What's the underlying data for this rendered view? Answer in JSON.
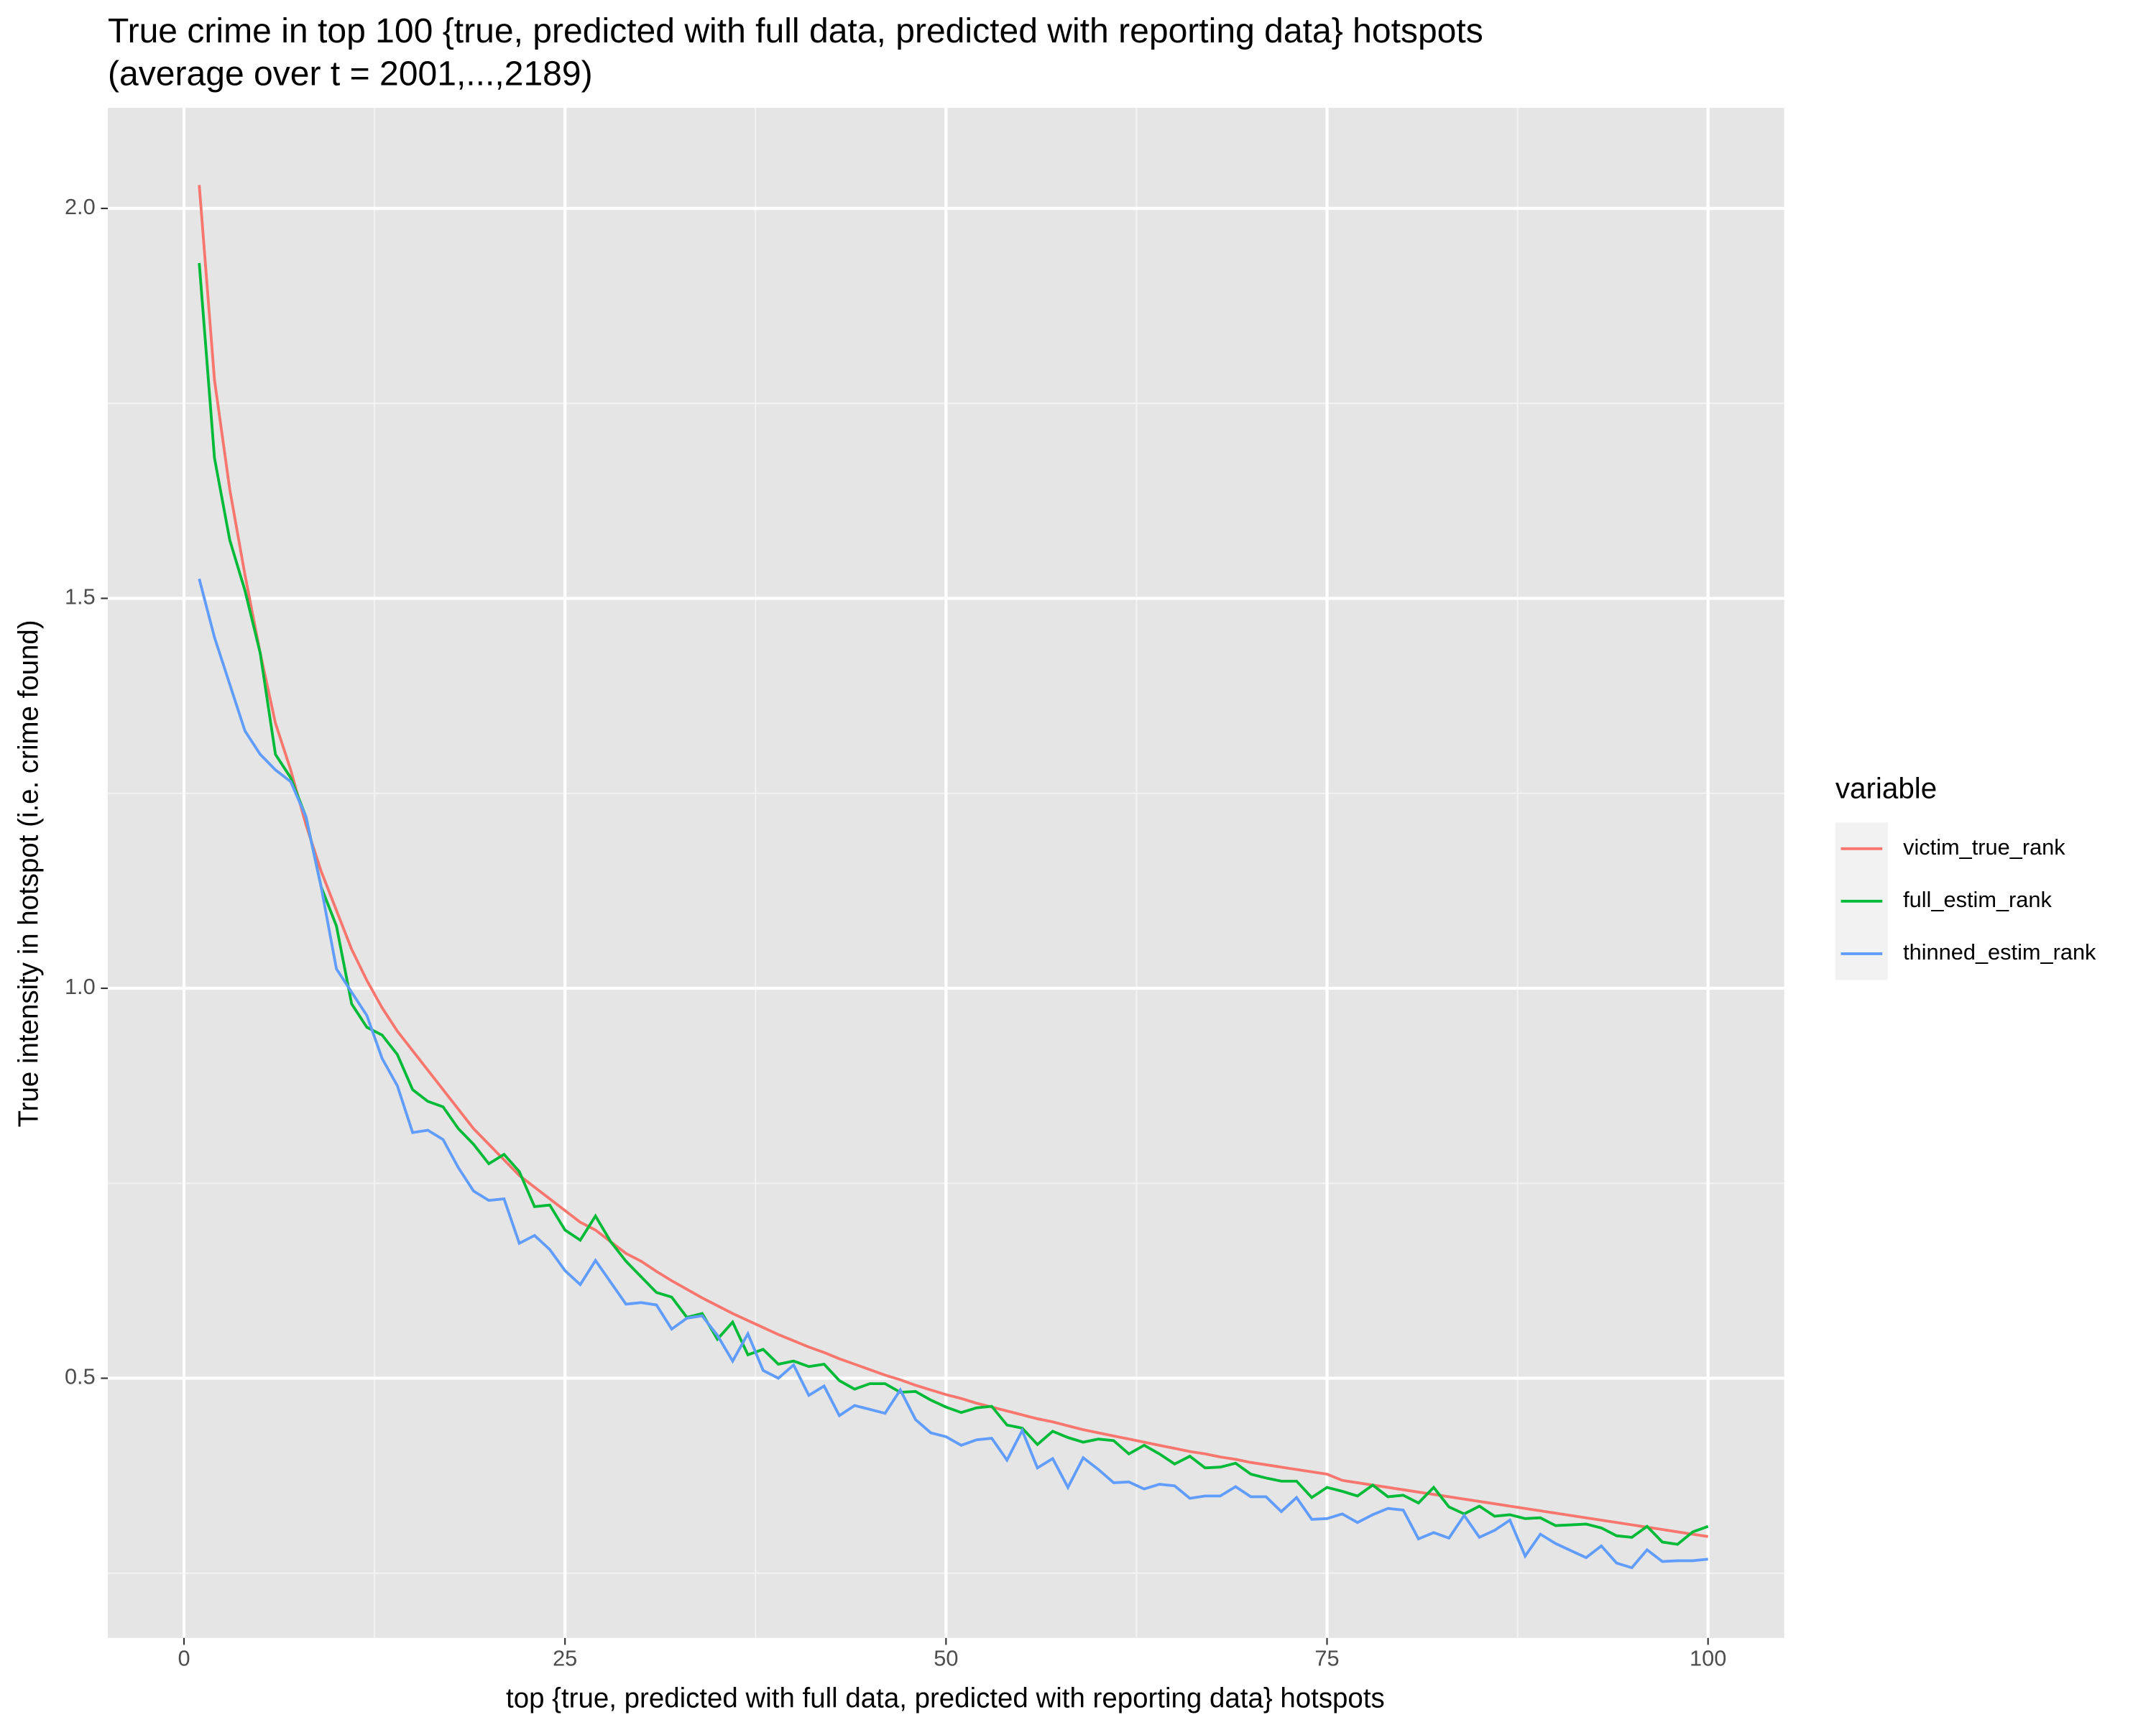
{
  "chart_data": {
    "type": "line",
    "title": "True crime in top 100 {true, predicted with full data, predicted with reporting data} hotspots",
    "subtitle": "(average over t = 2001,...,2189)",
    "x_label": "top {true, predicted with full data, predicted with reporting data} hotspots",
    "y_label": "True intensity in hotspot (i.e. crime found)",
    "legend_title": "variable",
    "legend_position": "right",
    "grid": true,
    "xlim": [
      -5,
      105
    ],
    "xticks": [
      0,
      25,
      50,
      75,
      100
    ],
    "xminor": [
      12.5,
      37.5,
      62.5,
      87.5
    ],
    "ylim": [
      0.167,
      2.129
    ],
    "yticks": [
      {
        "value": 0.5,
        "label": "0.5"
      },
      {
        "value": 1,
        "label": "1.0"
      },
      {
        "value": 1.5,
        "label": "1.5"
      },
      {
        "value": 2,
        "label": "2.0"
      }
    ],
    "yminor": [
      0.25,
      0.75,
      1.25,
      1.75
    ],
    "x": [
      1,
      2,
      3,
      4,
      5,
      6,
      7,
      8,
      9,
      10,
      11,
      12,
      13,
      14,
      15,
      16,
      17,
      18,
      19,
      20,
      21,
      22,
      23,
      24,
      25,
      26,
      27,
      28,
      29,
      30,
      31,
      32,
      33,
      34,
      35,
      36,
      37,
      38,
      39,
      40,
      41,
      42,
      43,
      44,
      45,
      46,
      47,
      48,
      49,
      50,
      51,
      52,
      53,
      54,
      55,
      56,
      57,
      58,
      59,
      60,
      61,
      62,
      63,
      64,
      65,
      66,
      67,
      68,
      69,
      70,
      71,
      72,
      73,
      74,
      75,
      76,
      77,
      78,
      79,
      80,
      81,
      82,
      83,
      84,
      85,
      86,
      87,
      88,
      89,
      90,
      91,
      92,
      93,
      94,
      95,
      96,
      97,
      98,
      99,
      100
    ],
    "series": [
      {
        "name": "victim_true_rank",
        "color": "#f8766d",
        "values": [
          2.03,
          1.78,
          1.64,
          1.53,
          1.43,
          1.34,
          1.28,
          1.21,
          1.15,
          1.1,
          1.05,
          1.01,
          0.975,
          0.945,
          0.92,
          0.895,
          0.87,
          0.845,
          0.82,
          0.8,
          0.78,
          0.76,
          0.745,
          0.73,
          0.715,
          0.7,
          0.69,
          0.675,
          0.66,
          0.65,
          0.637,
          0.625,
          0.614,
          0.603,
          0.593,
          0.583,
          0.574,
          0.565,
          0.556,
          0.548,
          0.54,
          0.533,
          0.525,
          0.518,
          0.511,
          0.504,
          0.498,
          0.491,
          0.485,
          0.479,
          0.474,
          0.468,
          0.463,
          0.458,
          0.453,
          0.448,
          0.444,
          0.439,
          0.434,
          0.43,
          0.426,
          0.422,
          0.418,
          0.414,
          0.41,
          0.406,
          0.403,
          0.399,
          0.396,
          0.392,
          0.389,
          0.386,
          0.383,
          0.38,
          0.377,
          0.369,
          0.366,
          0.363,
          0.36,
          0.357,
          0.354,
          0.351,
          0.348,
          0.345,
          0.342,
          0.339,
          0.336,
          0.333,
          0.33,
          0.327,
          0.324,
          0.321,
          0.318,
          0.315,
          0.312,
          0.309,
          0.306,
          0.303,
          0.3,
          0.297
        ]
      },
      {
        "name": "full_estim_rank",
        "color": "#00ba38",
        "values": [
          1.93,
          1.68,
          1.575,
          1.51,
          1.43,
          1.3,
          1.27,
          1.22,
          1.13,
          1.08,
          0.98,
          0.95,
          0.94,
          0.915,
          0.87,
          0.855,
          0.848,
          0.82,
          0.8,
          0.775,
          0.787,
          0.765,
          0.72,
          0.722,
          0.69,
          0.677,
          0.708,
          0.675,
          0.65,
          0.63,
          0.61,
          0.604,
          0.578,
          0.583,
          0.55,
          0.572,
          0.53,
          0.537,
          0.518,
          0.522,
          0.515,
          0.518,
          0.497,
          0.486,
          0.493,
          0.493,
          0.482,
          0.483,
          0.472,
          0.463,
          0.456,
          0.462,
          0.464,
          0.44,
          0.436,
          0.415,
          0.432,
          0.424,
          0.418,
          0.422,
          0.42,
          0.403,
          0.414,
          0.403,
          0.39,
          0.4,
          0.385,
          0.386,
          0.391,
          0.377,
          0.372,
          0.368,
          0.368,
          0.347,
          0.36,
          0.355,
          0.349,
          0.363,
          0.348,
          0.35,
          0.34,
          0.36,
          0.335,
          0.326,
          0.336,
          0.323,
          0.325,
          0.32,
          0.321,
          0.311,
          0.312,
          0.313,
          0.308,
          0.298,
          0.296,
          0.31,
          0.29,
          0.287,
          0.303,
          0.31
        ]
      },
      {
        "name": "thinned_estim_rank",
        "color": "#619cff",
        "values": [
          1.525,
          1.45,
          1.39,
          1.33,
          1.3,
          1.28,
          1.265,
          1.22,
          1.13,
          1.025,
          0.995,
          0.965,
          0.91,
          0.875,
          0.815,
          0.818,
          0.806,
          0.77,
          0.74,
          0.728,
          0.73,
          0.673,
          0.683,
          0.665,
          0.638,
          0.62,
          0.651,
          0.623,
          0.595,
          0.597,
          0.594,
          0.563,
          0.577,
          0.58,
          0.555,
          0.522,
          0.557,
          0.51,
          0.5,
          0.517,
          0.478,
          0.49,
          0.452,
          0.465,
          0.46,
          0.455,
          0.485,
          0.447,
          0.43,
          0.425,
          0.414,
          0.421,
          0.423,
          0.395,
          0.433,
          0.385,
          0.397,
          0.36,
          0.398,
          0.383,
          0.366,
          0.367,
          0.358,
          0.364,
          0.362,
          0.346,
          0.349,
          0.349,
          0.361,
          0.348,
          0.348,
          0.329,
          0.347,
          0.319,
          0.32,
          0.326,
          0.315,
          0.325,
          0.333,
          0.331,
          0.294,
          0.302,
          0.295,
          0.324,
          0.296,
          0.305,
          0.318,
          0.272,
          0.3,
          0.288,
          0.279,
          0.27,
          0.285,
          0.263,
          0.257,
          0.28,
          0.265,
          0.266,
          0.266,
          0.268
        ]
      }
    ]
  }
}
